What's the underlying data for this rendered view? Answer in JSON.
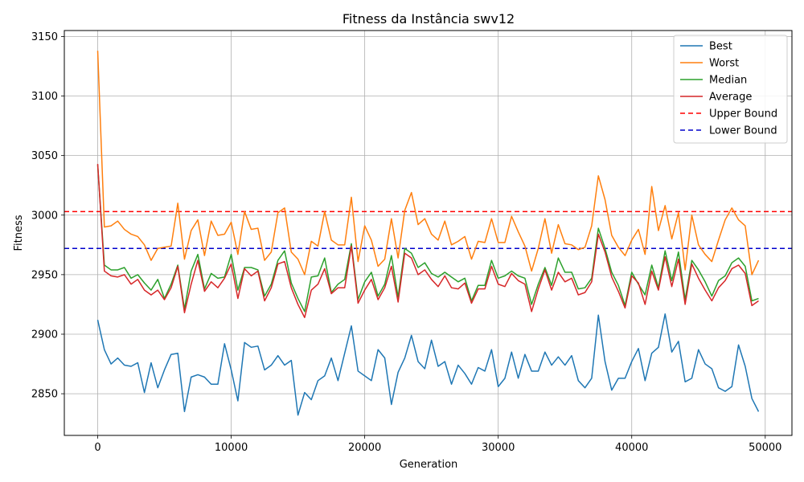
{
  "chart_data": {
    "type": "line",
    "title": "Fitness da Instância swv12",
    "xlabel": "Generation",
    "ylabel": "Fitness",
    "xlim": [
      -2500,
      52000
    ],
    "ylim": [
      2815,
      3155
    ],
    "xticks": [
      0,
      10000,
      20000,
      30000,
      40000,
      50000
    ],
    "yticks": [
      2850,
      2900,
      2950,
      3000,
      3050,
      3100,
      3150
    ],
    "grid": true,
    "legend_position": "top-right",
    "x": [
      0,
      500,
      1000,
      1500,
      2000,
      2500,
      3000,
      3500,
      4000,
      4500,
      5000,
      5500,
      6000,
      6500,
      7000,
      7500,
      8000,
      8500,
      9000,
      9500,
      10000,
      10500,
      11000,
      11500,
      12000,
      12500,
      13000,
      13500,
      14000,
      14500,
      15000,
      15500,
      16000,
      16500,
      17000,
      17500,
      18000,
      18500,
      19000,
      19500,
      20000,
      20500,
      21000,
      21500,
      22000,
      22500,
      23000,
      23500,
      24000,
      24500,
      25000,
      25500,
      26000,
      26500,
      27000,
      27500,
      28000,
      28500,
      29000,
      29500,
      30000,
      30500,
      31000,
      31500,
      32000,
      32500,
      33000,
      33500,
      34000,
      34500,
      35000,
      35500,
      36000,
      36500,
      37000,
      37500,
      38000,
      38500,
      39000,
      39500,
      40000,
      40500,
      41000,
      41500,
      42000,
      42500,
      43000,
      43500,
      44000,
      44500,
      45000,
      45500,
      46000,
      46500,
      47000,
      47500,
      48000,
      48500,
      49000,
      49500
    ],
    "series": [
      {
        "name": "Best",
        "color": "#1f77b4",
        "values": [
          2912,
          2887,
          2875,
          2880,
          2874,
          2873,
          2876,
          2851,
          2876,
          2855,
          2870,
          2883,
          2884,
          2835,
          2864,
          2866,
          2864,
          2858,
          2858,
          2892,
          2870,
          2844,
          2893,
          2889,
          2890,
          2870,
          2874,
          2882,
          2874,
          2878,
          2832,
          2851,
          2845,
          2861,
          2865,
          2880,
          2861,
          2884,
          2907,
          2869,
          2865,
          2861,
          2887,
          2880,
          2841,
          2868,
          2880,
          2899,
          2877,
          2871,
          2895,
          2873,
          2877,
          2858,
          2874,
          2867,
          2858,
          2872,
          2869,
          2887,
          2856,
          2863,
          2885,
          2863,
          2883,
          2869,
          2869,
          2885,
          2874,
          2881,
          2874,
          2882,
          2861,
          2855,
          2863,
          2916,
          2877,
          2853,
          2863,
          2863,
          2877,
          2888,
          2861,
          2884,
          2889,
          2917,
          2885,
          2894,
          2860,
          2863,
          2887,
          2875,
          2871,
          2855,
          2852,
          2856,
          2891,
          2873,
          2846,
          2835
        ]
      },
      {
        "name": "Worst",
        "color": "#ff7f0e",
        "values": [
          3138,
          2990,
          2991,
          2995,
          2988,
          2984,
          2982,
          2975,
          2962,
          2972,
          2973,
          2974,
          3010,
          2963,
          2987,
          2996,
          2966,
          2995,
          2983,
          2984,
          2994,
          2967,
          3003,
          2988,
          2989,
          2962,
          2969,
          3002,
          3006,
          2969,
          2963,
          2950,
          2978,
          2974,
          3003,
          2979,
          2975,
          2975,
          3015,
          2961,
          2991,
          2979,
          2957,
          2963,
          2997,
          2964,
          3004,
          3019,
          2992,
          2997,
          2984,
          2979,
          2995,
          2975,
          2978,
          2982,
          2963,
          2978,
          2977,
          2997,
          2977,
          2977,
          2999,
          2986,
          2974,
          2953,
          2972,
          2997,
          2968,
          2992,
          2976,
          2975,
          2971,
          2973,
          2991,
          3033,
          3013,
          2983,
          2973,
          2966,
          2979,
          2988,
          2967,
          3024,
          2987,
          3008,
          2980,
          3002,
          2954,
          3000,
          2975,
          2967,
          2961,
          2979,
          2996,
          3006,
          2996,
          2991,
          2950,
          2962
        ]
      },
      {
        "name": "Median",
        "color": "#2ca02c",
        "values": [
          3042,
          2958,
          2954,
          2954,
          2956,
          2947,
          2950,
          2943,
          2937,
          2946,
          2930,
          2942,
          2958,
          2921,
          2953,
          2967,
          2938,
          2951,
          2947,
          2948,
          2967,
          2937,
          2956,
          2956,
          2954,
          2932,
          2942,
          2962,
          2970,
          2943,
          2930,
          2919,
          2948,
          2949,
          2964,
          2935,
          2942,
          2946,
          2976,
          2929,
          2944,
          2952,
          2932,
          2942,
          2966,
          2931,
          2972,
          2968,
          2956,
          2960,
          2951,
          2948,
          2952,
          2948,
          2944,
          2947,
          2928,
          2941,
          2941,
          2962,
          2947,
          2949,
          2953,
          2949,
          2947,
          2925,
          2942,
          2956,
          2941,
          2964,
          2952,
          2952,
          2938,
          2939,
          2947,
          2989,
          2972,
          2952,
          2941,
          2924,
          2952,
          2942,
          2933,
          2958,
          2939,
          2970,
          2945,
          2969,
          2929,
          2962,
          2954,
          2944,
          2932,
          2945,
          2949,
          2960,
          2964,
          2957,
          2928,
          2930
        ]
      },
      {
        "name": "Average",
        "color": "#d62728",
        "values": [
          3043,
          2953,
          2949,
          2948,
          2950,
          2942,
          2946,
          2937,
          2933,
          2937,
          2929,
          2939,
          2957,
          2918,
          2942,
          2962,
          2936,
          2944,
          2939,
          2947,
          2959,
          2930,
          2955,
          2949,
          2953,
          2928,
          2939,
          2959,
          2961,
          2939,
          2925,
          2914,
          2937,
          2942,
          2955,
          2934,
          2939,
          2939,
          2974,
          2926,
          2937,
          2946,
          2929,
          2939,
          2957,
          2927,
          2968,
          2964,
          2950,
          2954,
          2946,
          2940,
          2949,
          2939,
          2938,
          2943,
          2926,
          2938,
          2938,
          2957,
          2942,
          2940,
          2951,
          2945,
          2942,
          2919,
          2938,
          2954,
          2937,
          2952,
          2944,
          2947,
          2933,
          2935,
          2944,
          2984,
          2969,
          2948,
          2936,
          2922,
          2949,
          2943,
          2925,
          2953,
          2937,
          2965,
          2940,
          2963,
          2925,
          2959,
          2947,
          2937,
          2928,
          2939,
          2945,
          2955,
          2958,
          2951,
          2924,
          2928
        ]
      }
    ],
    "reference_lines": [
      {
        "name": "Upper Bound",
        "y": 3003,
        "color": "#ff0000",
        "style": "dashed"
      },
      {
        "name": "Lower Bound",
        "y": 2972,
        "color": "#0000cc",
        "style": "dashed"
      }
    ]
  }
}
